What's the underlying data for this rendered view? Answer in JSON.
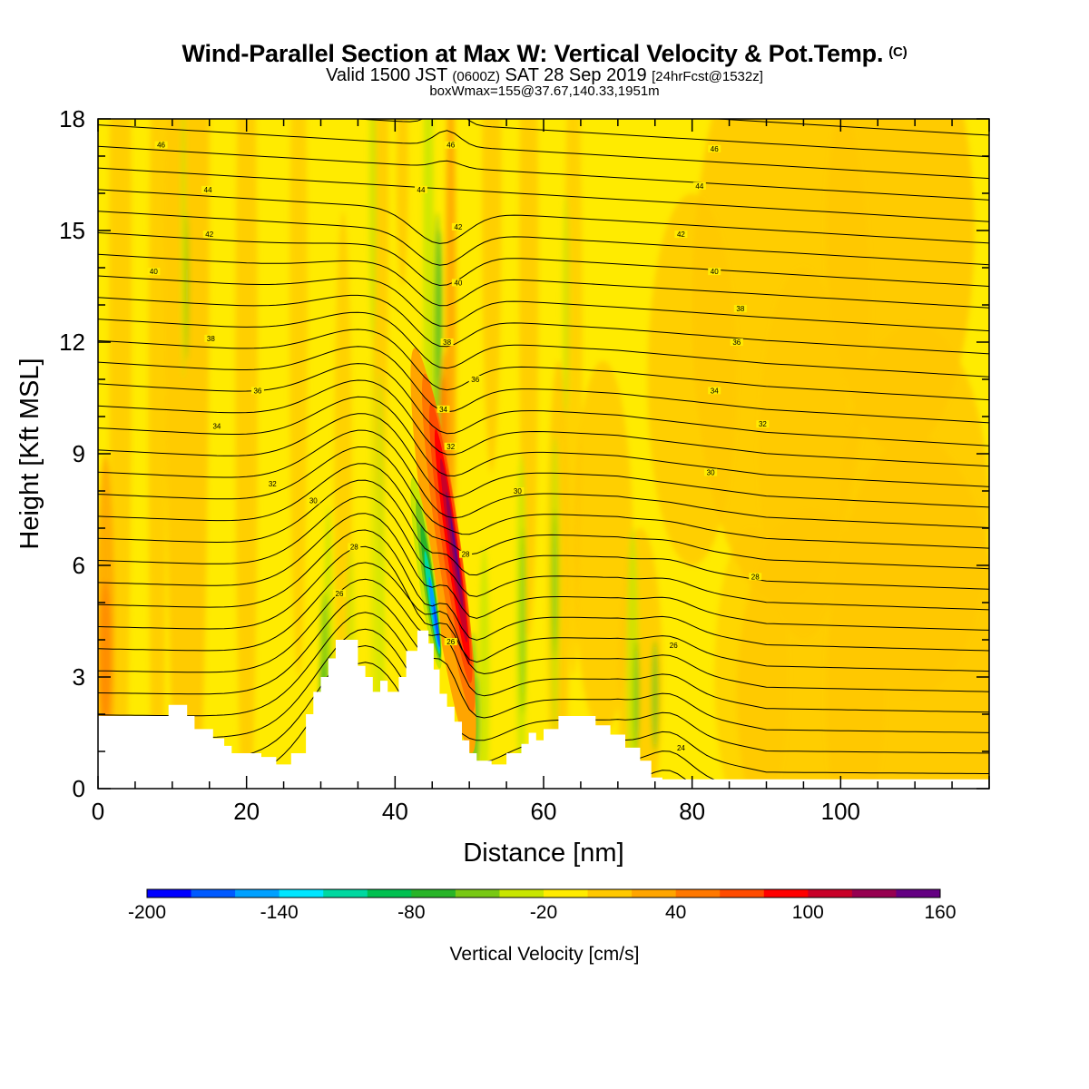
{
  "header": {
    "title": "Wind-Parallel Section at Max W: Vertical Velocity & Pot.Temp.",
    "copyright": "(C)",
    "subtitle_a": "Valid 1500 JST",
    "subtitle_b": "(0600Z)",
    "subtitle_c": "SAT 28 Sep 2019",
    "subtitle_d": "[24hrFcst@1532z]",
    "info": "boxWmax=155@37.67,140.33,1951m"
  },
  "chart_data": {
    "type": "heatmap",
    "title": "Wind-Parallel Section at Max W: Vertical Velocity & Pot.Temp.",
    "xlabel": "Distance [nm]",
    "ylabel": "Height [Kft MSL]",
    "xlim": [
      0,
      120
    ],
    "ylim": [
      0,
      18
    ],
    "x_ticks": [
      0,
      20,
      40,
      60,
      80,
      100
    ],
    "y_ticks": [
      0,
      3,
      6,
      9,
      12,
      15,
      18
    ],
    "colorbar": {
      "label": "Vertical Velocity [cm/s]",
      "tick_labels": [
        -200,
        -140,
        -80,
        -20,
        40,
        100,
        160
      ],
      "levels": [
        -200,
        -180,
        -160,
        -140,
        -120,
        -100,
        -80,
        -60,
        -40,
        -20,
        0,
        20,
        40,
        60,
        80,
        100,
        120,
        140,
        160
      ],
      "colors": [
        "#0000ff",
        "#005aff",
        "#00a0ff",
        "#00e6ff",
        "#00d8a0",
        "#00c050",
        "#28b428",
        "#78c814",
        "#c8e600",
        "#ffeb00",
        "#ffc800",
        "#ffa500",
        "#ff7800",
        "#ff4b00",
        "#ff0000",
        "#c80028",
        "#960050",
        "#640082"
      ]
    },
    "theta_contour_labels": [
      {
        "value": "46",
        "x": 8.5,
        "y": 17.3
      },
      {
        "value": "44",
        "x": 14.8,
        "y": 16.1
      },
      {
        "value": "42",
        "x": 15.0,
        "y": 14.9
      },
      {
        "value": "40",
        "x": 7.5,
        "y": 13.9
      },
      {
        "value": "38",
        "x": 15.2,
        "y": 12.1
      },
      {
        "value": "36",
        "x": 21.5,
        "y": 10.7
      },
      {
        "value": "34",
        "x": 16.0,
        "y": 9.75
      },
      {
        "value": "32",
        "x": 23.5,
        "y": 8.2
      },
      {
        "value": "30",
        "x": 29.0,
        "y": 7.75
      },
      {
        "value": "28",
        "x": 34.5,
        "y": 6.5
      },
      {
        "value": "26",
        "x": 32.5,
        "y": 5.25
      },
      {
        "value": "46",
        "x": 47.5,
        "y": 17.3
      },
      {
        "value": "44",
        "x": 43.5,
        "y": 16.1
      },
      {
        "value": "42",
        "x": 48.5,
        "y": 15.1
      },
      {
        "value": "40",
        "x": 48.5,
        "y": 13.6
      },
      {
        "value": "38",
        "x": 47.0,
        "y": 12.0
      },
      {
        "value": "36",
        "x": 50.8,
        "y": 11.0
      },
      {
        "value": "34",
        "x": 46.5,
        "y": 10.2
      },
      {
        "value": "32",
        "x": 47.5,
        "y": 9.2
      },
      {
        "value": "30",
        "x": 56.5,
        "y": 8.0
      },
      {
        "value": "28",
        "x": 49.5,
        "y": 6.3
      },
      {
        "value": "26",
        "x": 47.5,
        "y": 3.95
      },
      {
        "value": "46",
        "x": 83.0,
        "y": 17.2
      },
      {
        "value": "44",
        "x": 81.0,
        "y": 16.2
      },
      {
        "value": "42",
        "x": 78.5,
        "y": 14.9
      },
      {
        "value": "40",
        "x": 83.0,
        "y": 13.9
      },
      {
        "value": "38",
        "x": 86.5,
        "y": 12.9
      },
      {
        "value": "36",
        "x": 86.0,
        "y": 12.0
      },
      {
        "value": "34",
        "x": 83.0,
        "y": 10.7
      },
      {
        "value": "32",
        "x": 89.5,
        "y": 9.8
      },
      {
        "value": "30",
        "x": 82.5,
        "y": 8.5
      },
      {
        "value": "28",
        "x": 88.5,
        "y": 5.7
      },
      {
        "value": "26",
        "x": 77.5,
        "y": 3.85
      },
      {
        "value": "24",
        "x": 78.5,
        "y": 1.1
      }
    ]
  }
}
